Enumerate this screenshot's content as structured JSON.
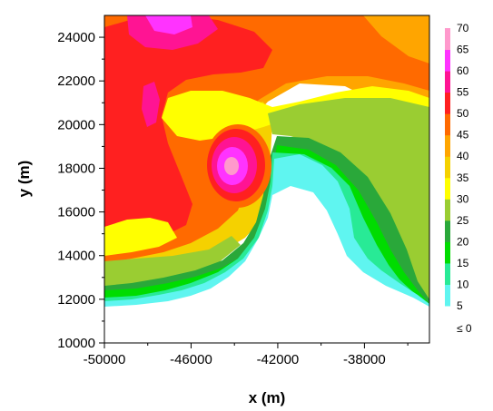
{
  "chart_data": {
    "type": "heatmap",
    "title": "",
    "xlabel": "x (m)",
    "ylabel": "y (m)",
    "xlim": [
      -50000,
      -35000
    ],
    "ylim": [
      10000,
      25000
    ],
    "x_ticks": [
      -50000,
      -46000,
      -42000,
      -38000
    ],
    "y_ticks": [
      10000,
      12000,
      14000,
      16000,
      18000,
      20000,
      22000,
      24000
    ],
    "x_tick_labels": [
      "-50000",
      "-46000",
      "-42000",
      "-38000"
    ],
    "y_tick_labels": [
      "10000",
      "12000",
      "14000",
      "16000",
      "18000",
      "20000",
      "22000",
      "24000"
    ],
    "colorbar": {
      "levels": [
        5,
        10,
        15,
        20,
        25,
        30,
        35,
        40,
        45,
        50,
        55,
        60,
        65,
        70
      ],
      "labels": [
        "5",
        "10",
        "15",
        "20",
        "25",
        "30",
        "35",
        "40",
        "45",
        "50",
        "55",
        "60",
        "65",
        "70"
      ],
      "below_label": "≤ 0",
      "colors": [
        "#5ff5f0",
        "#28ea96",
        "#00dc00",
        "#2aa83a",
        "#9acd32",
        "#ffff00",
        "#f5d100",
        "#ffa500",
        "#ff6a00",
        "#ff2020",
        "#ff1493",
        "#ff33ff",
        "#ff99cc"
      ]
    },
    "features": [
      {
        "name": "max-reflectivity-core",
        "x": -44200,
        "y": 18300,
        "value": 65
      },
      {
        "name": "high-reflectivity-band",
        "x": -48500,
        "y": 20000,
        "value": 50
      }
    ]
  }
}
